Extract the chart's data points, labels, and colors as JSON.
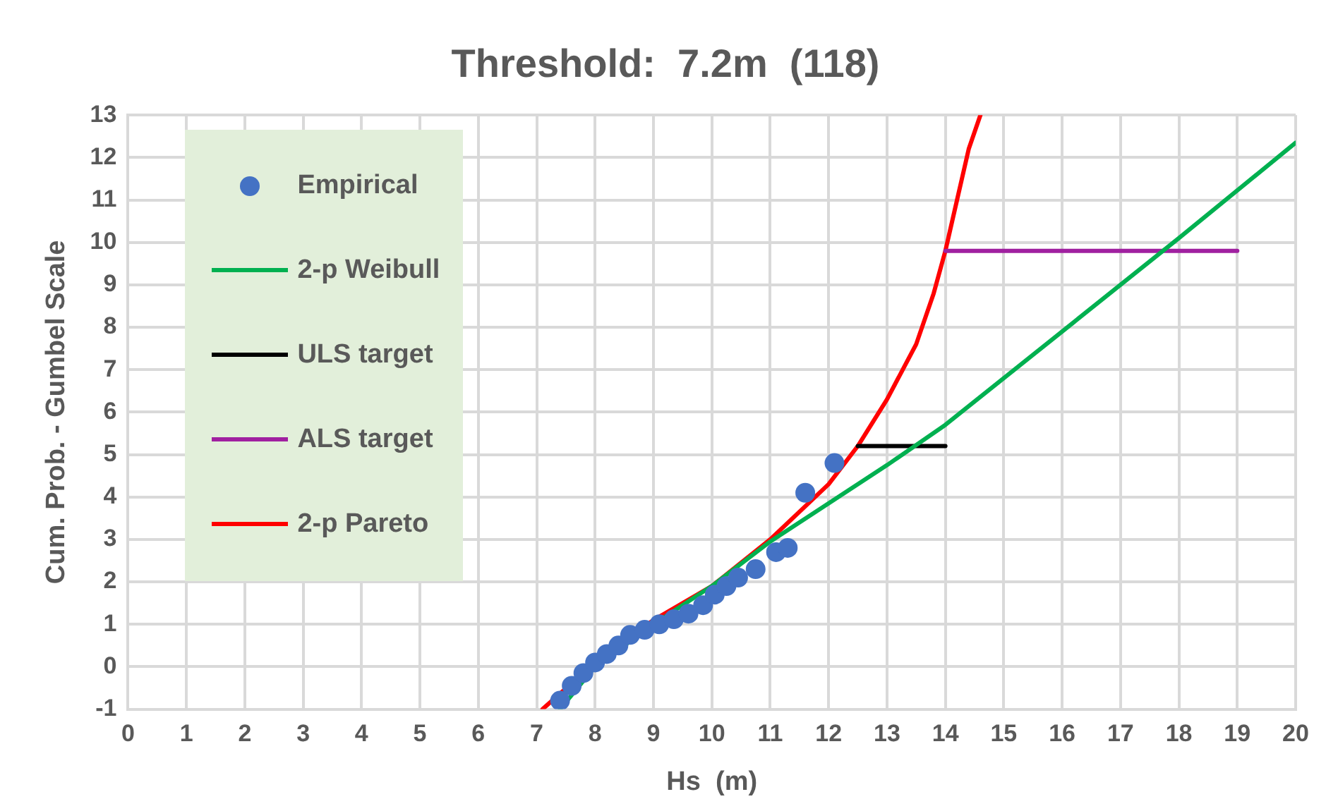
{
  "chart_data": {
    "type": "scatter",
    "title": "Threshold:  7.2m  (118)",
    "xlabel": "Hs  (m)",
    "ylabel": "Cum. Prob. - Gumbel Scale",
    "xlim": [
      0,
      20
    ],
    "xticks": [
      0,
      1,
      2,
      3,
      4,
      5,
      6,
      7,
      8,
      9,
      10,
      11,
      12,
      13,
      14,
      15,
      16,
      17,
      18,
      19,
      20
    ],
    "ylim": [
      -1,
      13
    ],
    "yticks": [
      -1,
      0,
      1,
      2,
      3,
      4,
      5,
      6,
      7,
      8,
      9,
      10,
      11,
      12,
      13
    ],
    "grid": true,
    "legend": "top left",
    "series": [
      {
        "name": "Empirical",
        "type": "scatter",
        "marker": "circle",
        "color": "#4472c4",
        "x": [
          7.4,
          7.6,
          7.8,
          8.0,
          8.2,
          8.4,
          8.6,
          8.85,
          9.1,
          9.35,
          9.6,
          9.85,
          10.05,
          10.25,
          10.45,
          10.75,
          11.1,
          11.3,
          11.6,
          12.1
        ],
        "values": [
          -0.8,
          -0.45,
          -0.15,
          0.1,
          0.3,
          0.5,
          0.75,
          0.87,
          1.0,
          1.12,
          1.25,
          1.45,
          1.7,
          1.9,
          2.1,
          2.3,
          2.7,
          2.8,
          4.1,
          4.8
        ]
      },
      {
        "name": "2-p Weibull",
        "type": "line",
        "marker": "none",
        "line_style": "solid",
        "color": "#00b050",
        "x": [
          7.4,
          8,
          9,
          10,
          11,
          12,
          13,
          14,
          16,
          18,
          20
        ],
        "values": [
          -1,
          0.0,
          1.0,
          1.9,
          2.95,
          3.85,
          4.75,
          5.7,
          7.9,
          10.1,
          12.35
        ]
      },
      {
        "name": "ULS target",
        "type": "line",
        "marker": "none",
        "line_style": "solid",
        "color": "#000000",
        "x": [
          12.5,
          14
        ],
        "values": [
          5.2,
          5.2
        ]
      },
      {
        "name": "ALS target",
        "type": "line",
        "marker": "none",
        "line_style": "solid",
        "color": "#a020a0",
        "x": [
          14,
          19
        ],
        "values": [
          9.8,
          9.8
        ]
      },
      {
        "name": "2-p Pareto",
        "type": "line",
        "marker": "none",
        "line_style": "solid",
        "color": "#ff0000",
        "x": [
          7.1,
          8,
          9,
          10,
          11,
          12,
          12.5,
          13,
          13.5,
          13.8,
          14,
          14.2,
          14.4,
          14.6
        ],
        "values": [
          -1,
          0.1,
          1.1,
          1.9,
          3.0,
          4.3,
          5.2,
          6.3,
          7.6,
          8.8,
          9.8,
          11,
          12.2,
          13
        ]
      }
    ]
  }
}
